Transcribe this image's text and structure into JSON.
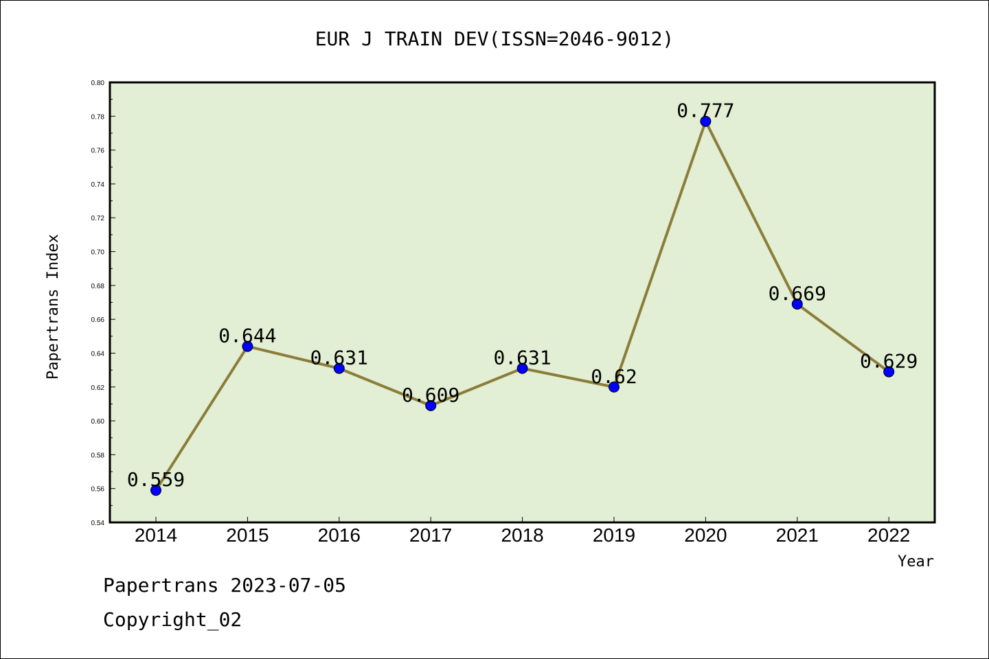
{
  "chart_data": {
    "type": "line",
    "title": "EUR J TRAIN DEV(ISSN=2046-9012)",
    "xlabel": "Year",
    "ylabel": "Papertrans Index",
    "categories": [
      "2014",
      "2015",
      "2016",
      "2017",
      "2018",
      "2019",
      "2020",
      "2021",
      "2022"
    ],
    "values": [
      0.559,
      0.644,
      0.631,
      0.609,
      0.631,
      0.62,
      0.777,
      0.669,
      0.629
    ],
    "data_labels": [
      "0.559",
      "0.644",
      "0.631",
      "0.609",
      "0.631",
      "0.62",
      "0.777",
      "0.669",
      "0.629"
    ],
    "ylim": [
      0.54,
      0.8
    ],
    "yticks": [
      "0.54",
      "0.56",
      "0.58",
      "0.60",
      "0.62",
      "0.64",
      "0.66",
      "0.68",
      "0.70",
      "0.72",
      "0.74",
      "0.76",
      "0.78",
      "0.80"
    ],
    "grid": false,
    "colors": {
      "plot_background": "#e2efd4",
      "line": "#8b7d3a",
      "marker": "#0000ff"
    }
  },
  "footer": {
    "line1": "Papertrans 2023-07-05",
    "line2": "Copyright_02"
  }
}
